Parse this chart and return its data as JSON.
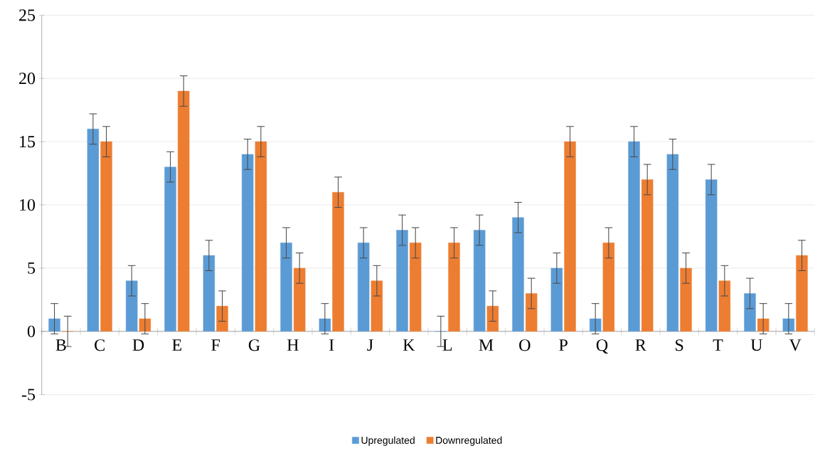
{
  "chart_data": {
    "type": "bar",
    "categories": [
      "B",
      "C",
      "D",
      "E",
      "F",
      "G",
      "H",
      "I",
      "J",
      "K",
      "L",
      "M",
      "O",
      "P",
      "Q",
      "R",
      "S",
      "T",
      "U",
      "V"
    ],
    "series": [
      {
        "name": "Upregulated",
        "color": "#5b9bd5",
        "values": [
          1,
          16,
          4,
          13,
          6,
          14,
          7,
          1,
          7,
          8,
          0,
          8,
          9,
          5,
          1,
          15,
          14,
          12,
          3,
          1
        ],
        "errors": [
          1.2,
          1.2,
          1.2,
          1.2,
          1.2,
          1.2,
          1.2,
          1.2,
          1.2,
          1.2,
          1.2,
          1.2,
          1.2,
          1.2,
          1.2,
          1.2,
          1.2,
          1.2,
          1.2,
          1.2
        ]
      },
      {
        "name": "Downregulated",
        "color": "#ed7d31",
        "values": [
          0,
          15,
          1,
          19,
          2,
          15,
          5,
          11,
          4,
          7,
          7,
          2,
          3,
          15,
          7,
          12,
          5,
          4,
          1,
          6
        ],
        "errors": [
          1.2,
          1.2,
          1.2,
          1.2,
          1.2,
          1.2,
          1.2,
          1.2,
          1.2,
          1.2,
          1.2,
          1.2,
          1.2,
          1.2,
          1.2,
          1.2,
          1.2,
          1.2,
          1.2,
          1.2
        ]
      }
    ],
    "ylim": [
      -5,
      25
    ],
    "yticks": [
      -5,
      0,
      5,
      10,
      15,
      20,
      25
    ],
    "grid": "y",
    "legend": "bottom"
  }
}
